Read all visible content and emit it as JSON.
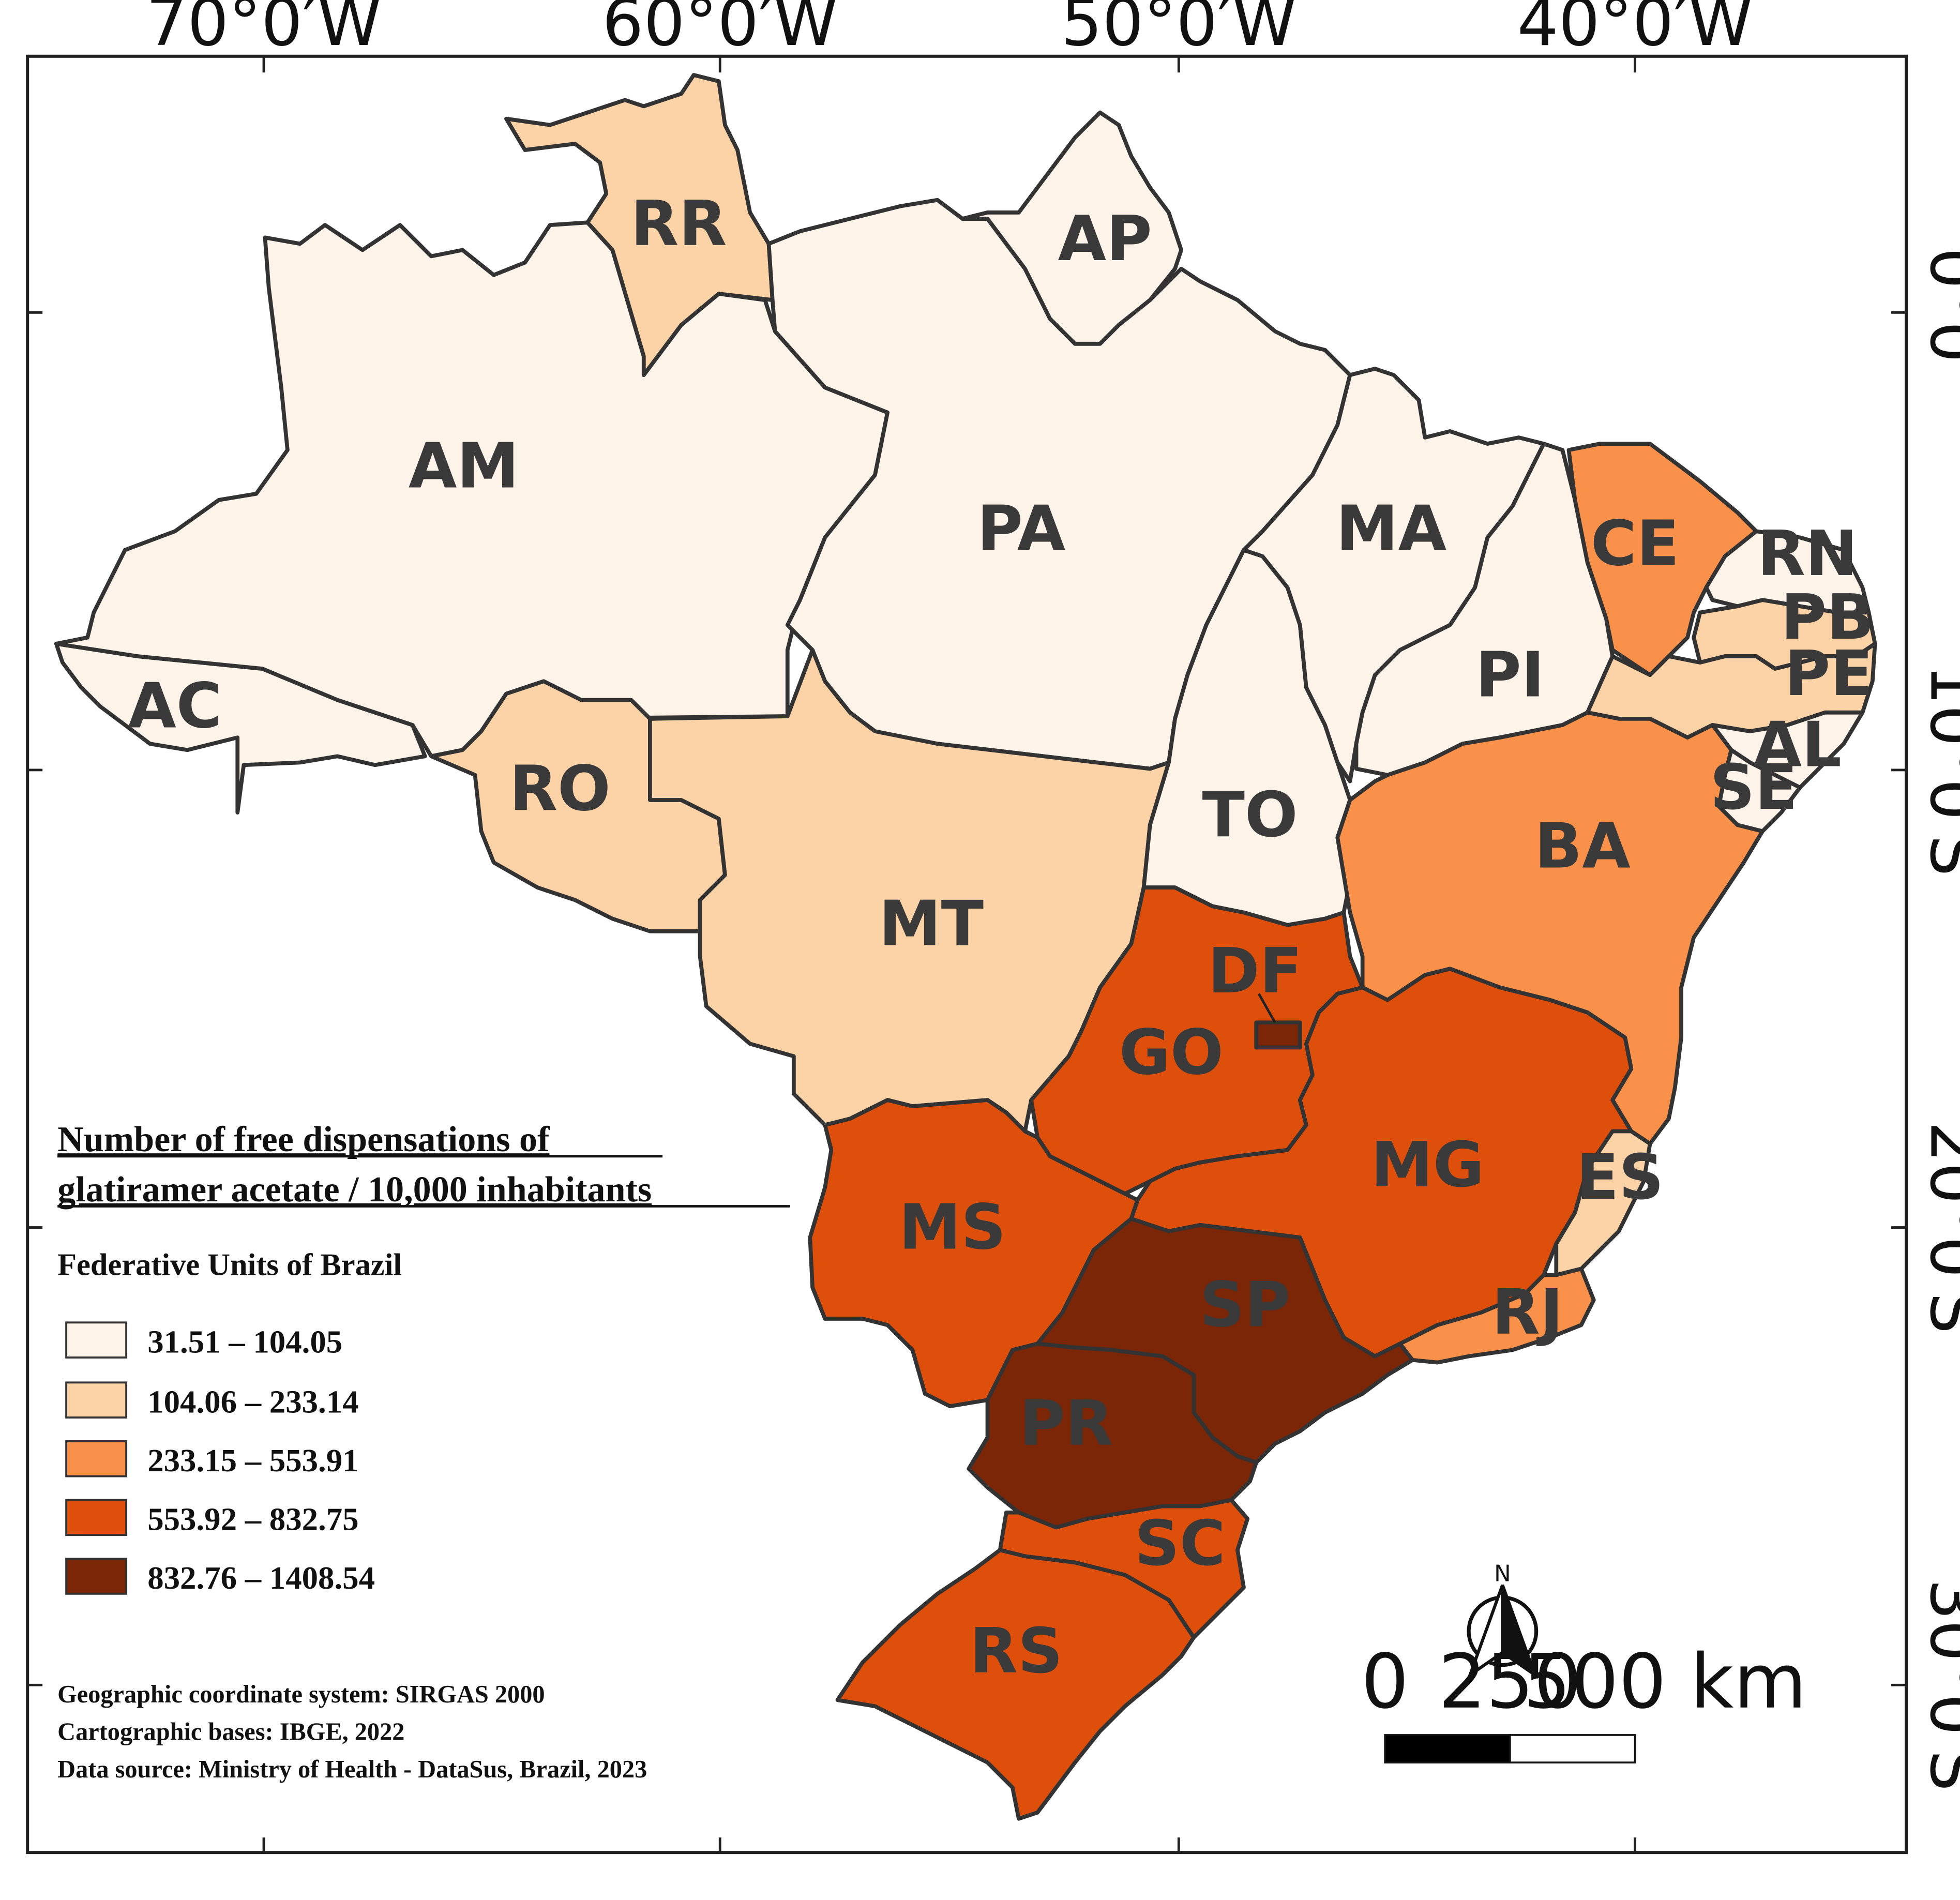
{
  "map": {
    "legend_title_line1": "Number of free dispensations of",
    "legend_title_line2": "glatiramer acetate / 10,000 inhabitants",
    "legend_subtitle": "Federative Units of Brazil",
    "classes": [
      {
        "label": "31.51 – 104.05",
        "color": "#fef3e9"
      },
      {
        "label": "104.06 – 233.14",
        "color": "#fcd3a6"
      },
      {
        "label": "233.15 – 553.91",
        "color": "#f9914a"
      },
      {
        "label": "553.92 – 832.75",
        "color": "#de4f0c"
      },
      {
        "label": "832.76 – 1408.54",
        "color": "#7a2607"
      }
    ],
    "notes": [
      "Geographic coordinate system: SIRGAS 2000",
      "Cartographic bases: IBGE, 2022",
      "Data source: Ministry of Health - DataSus, Brazil, 2023"
    ],
    "longitudes": [
      "70°0′W",
      "60°0′W",
      "50°0′W",
      "40°0′W"
    ],
    "latitudes": [
      "0°0′",
      "10°0′S",
      "20°0′S",
      "30°0′S"
    ],
    "north_label": "N",
    "scale": {
      "tick0": "0",
      "tick1": "250",
      "tick2": "500 km"
    },
    "states": [
      {
        "uf": "AC",
        "class": 0
      },
      {
        "uf": "AM",
        "class": 0
      },
      {
        "uf": "RR",
        "class": 1
      },
      {
        "uf": "RO",
        "class": 1
      },
      {
        "uf": "PA",
        "class": 0
      },
      {
        "uf": "AP",
        "class": 0
      },
      {
        "uf": "MT",
        "class": 1
      },
      {
        "uf": "TO",
        "class": 0
      },
      {
        "uf": "MA",
        "class": 0
      },
      {
        "uf": "PI",
        "class": 0
      },
      {
        "uf": "CE",
        "class": 2
      },
      {
        "uf": "RN",
        "class": 0
      },
      {
        "uf": "PB",
        "class": 1
      },
      {
        "uf": "PE",
        "class": 1
      },
      {
        "uf": "AL",
        "class": 0
      },
      {
        "uf": "SE",
        "class": 0
      },
      {
        "uf": "BA",
        "class": 2
      },
      {
        "uf": "GO",
        "class": 3
      },
      {
        "uf": "DF",
        "class": 4
      },
      {
        "uf": "MS",
        "class": 3
      },
      {
        "uf": "MG",
        "class": 3
      },
      {
        "uf": "ES",
        "class": 1
      },
      {
        "uf": "RJ",
        "class": 2
      },
      {
        "uf": "SP",
        "class": 4
      },
      {
        "uf": "PR",
        "class": 4
      },
      {
        "uf": "SC",
        "class": 3
      },
      {
        "uf": "RS",
        "class": 3
      }
    ]
  }
}
